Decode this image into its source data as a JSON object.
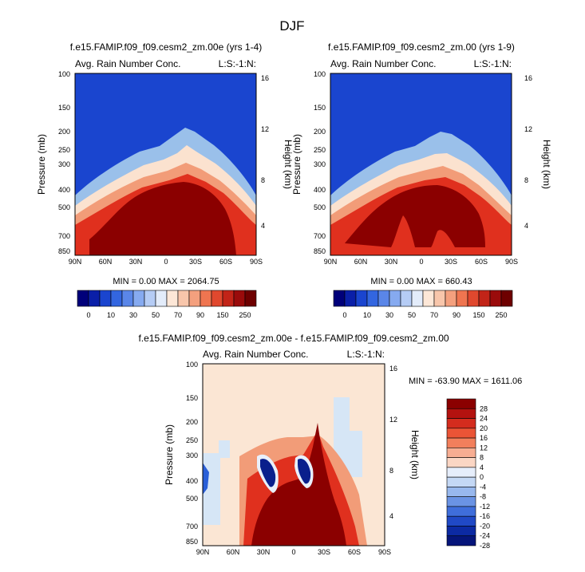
{
  "page_title": "DJF",
  "colors": {
    "dark_red": "#8b0000",
    "red": "#e0301e",
    "orange_red": "#f26a3a",
    "peach": "#f7b99b",
    "pale": "#fbe6d4",
    "light_blue": "#c6dcf2",
    "mid_blue": "#4f86e0",
    "blue": "#1f4fd6",
    "navy": "#0a1f8c"
  },
  "chart_data": [
    {
      "type": "heatmap",
      "title": "f.e15.FAMIP.f09_f09.cesm2_zm.00e (yrs 1-4)",
      "left_label": "Avg. Rain Number Conc.",
      "right_label": "L:S:-1:N:",
      "ylabel": "Pressure (mb)",
      "ylabel_right": "Height (km)",
      "x_ticks": [
        "90N",
        "60N",
        "30N",
        "0",
        "30S",
        "60S",
        "90S"
      ],
      "y_ticks": [
        "100",
        "150",
        "200",
        "250",
        "300",
        "400",
        "500",
        "700",
        "850"
      ],
      "y_ticks_right": [
        "16",
        "12",
        "8",
        "4"
      ],
      "stats": "MIN =  0.00  MAX = 2064.75",
      "colorbar_labels": [
        "0",
        "10",
        "30",
        "50",
        "70",
        "90",
        "150",
        "250"
      ]
    },
    {
      "type": "heatmap",
      "title": "f.e15.FAMIP.f09_f09.cesm2_zm.00 (yrs 1-9)",
      "left_label": "Avg. Rain Number Conc.",
      "right_label": "L:S:-1:N:",
      "ylabel": "Pressure (mb)",
      "ylabel_right": "Height (km)",
      "x_ticks": [
        "90N",
        "60N",
        "30N",
        "0",
        "30S",
        "60S",
        "90S"
      ],
      "y_ticks": [
        "100",
        "150",
        "200",
        "250",
        "300",
        "400",
        "500",
        "700",
        "850"
      ],
      "y_ticks_right": [
        "16",
        "12",
        "8",
        "4"
      ],
      "stats": "MIN =  0.00  MAX = 660.43",
      "colorbar_labels": [
        "0",
        "10",
        "30",
        "50",
        "70",
        "90",
        "150",
        "250"
      ]
    },
    {
      "type": "heatmap",
      "title": "f.e15.FAMIP.f09_f09.cesm2_zm.00e - f.e15.FAMIP.f09_f09.cesm2_zm.00",
      "left_label": "Avg. Rain Number Conc.",
      "right_label": "L:S:-1:N:",
      "ylabel": "Pressure (mb)",
      "ylabel_right": "Height (km)",
      "x_ticks": [
        "90N",
        "60N",
        "30N",
        "0",
        "30S",
        "60S",
        "90S"
      ],
      "y_ticks": [
        "100",
        "150",
        "200",
        "250",
        "300",
        "400",
        "500",
        "700",
        "850"
      ],
      "y_ticks_right": [
        "16",
        "12",
        "8",
        "4"
      ],
      "stats": "MIN = -63.90   MAX = 1611.06",
      "colorbar_labels": [
        "28",
        "24",
        "20",
        "16",
        "12",
        "8",
        "4",
        "0",
        "-4",
        "-8",
        "-12",
        "-16",
        "-20",
        "-24",
        "-28"
      ]
    }
  ]
}
